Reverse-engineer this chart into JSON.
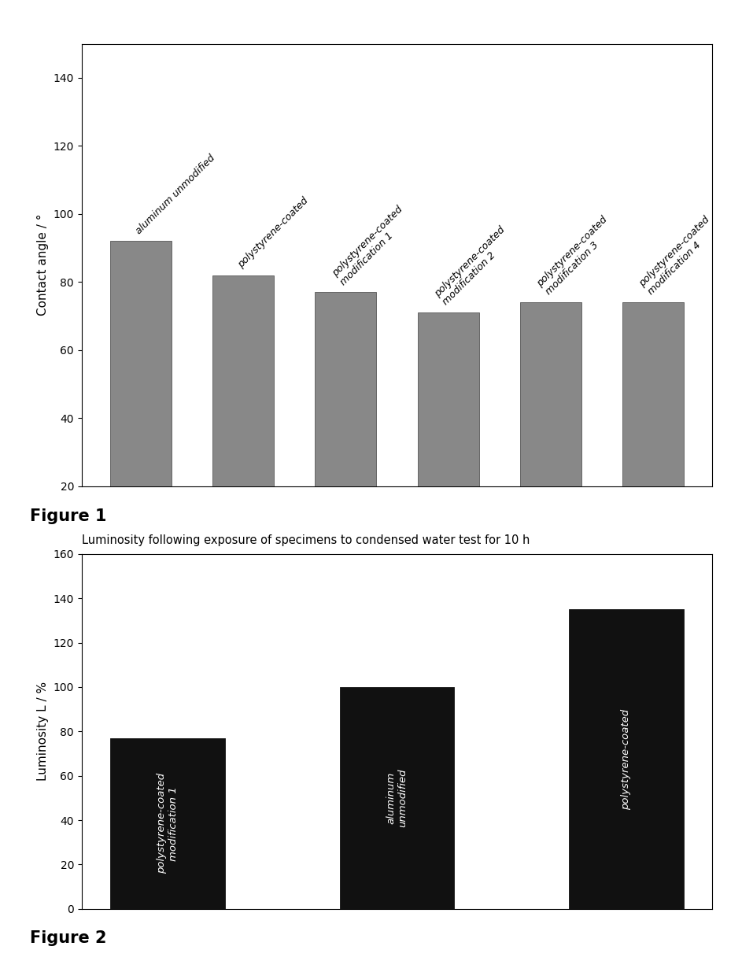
{
  "fig1": {
    "categories": [
      "aluminum unmodified",
      "polystyrene-coated",
      "polystyrene-coated\nmodification 1",
      "polystyrene-coated\nmodification 2",
      "polystyrene-coated\nmodification 3",
      "polystyrene-coated\nmodification 4"
    ],
    "values": [
      92,
      82,
      77,
      71,
      74,
      74
    ],
    "bar_color": "#888888",
    "ylabel": "Contact angle / °",
    "ylim": [
      20,
      150
    ],
    "yticks": [
      20,
      40,
      60,
      80,
      100,
      120,
      140
    ],
    "figure_label": "Figure 1",
    "bar_width": 0.6
  },
  "fig2": {
    "title": "Luminosity following exposure of specimens to condensed water test for 10 h",
    "categories": [
      "polystyrene-coated\nmodification 1",
      "aluminum\nunmodified",
      "polystyrene-coated"
    ],
    "values": [
      77,
      100,
      135
    ],
    "bar_color": "#111111",
    "label_color": "#ffffff",
    "ylabel": "Luminosity L / %",
    "ylim": [
      0,
      160
    ],
    "yticks": [
      0,
      20,
      40,
      60,
      80,
      100,
      120,
      140,
      160
    ],
    "figure_label": "Figure 2",
    "bar_width": 0.5
  },
  "bg_color": "#ffffff",
  "figure_label_fontsize": 15,
  "axis_label_fontsize": 11,
  "tick_fontsize": 10,
  "title_fontsize": 10.5
}
